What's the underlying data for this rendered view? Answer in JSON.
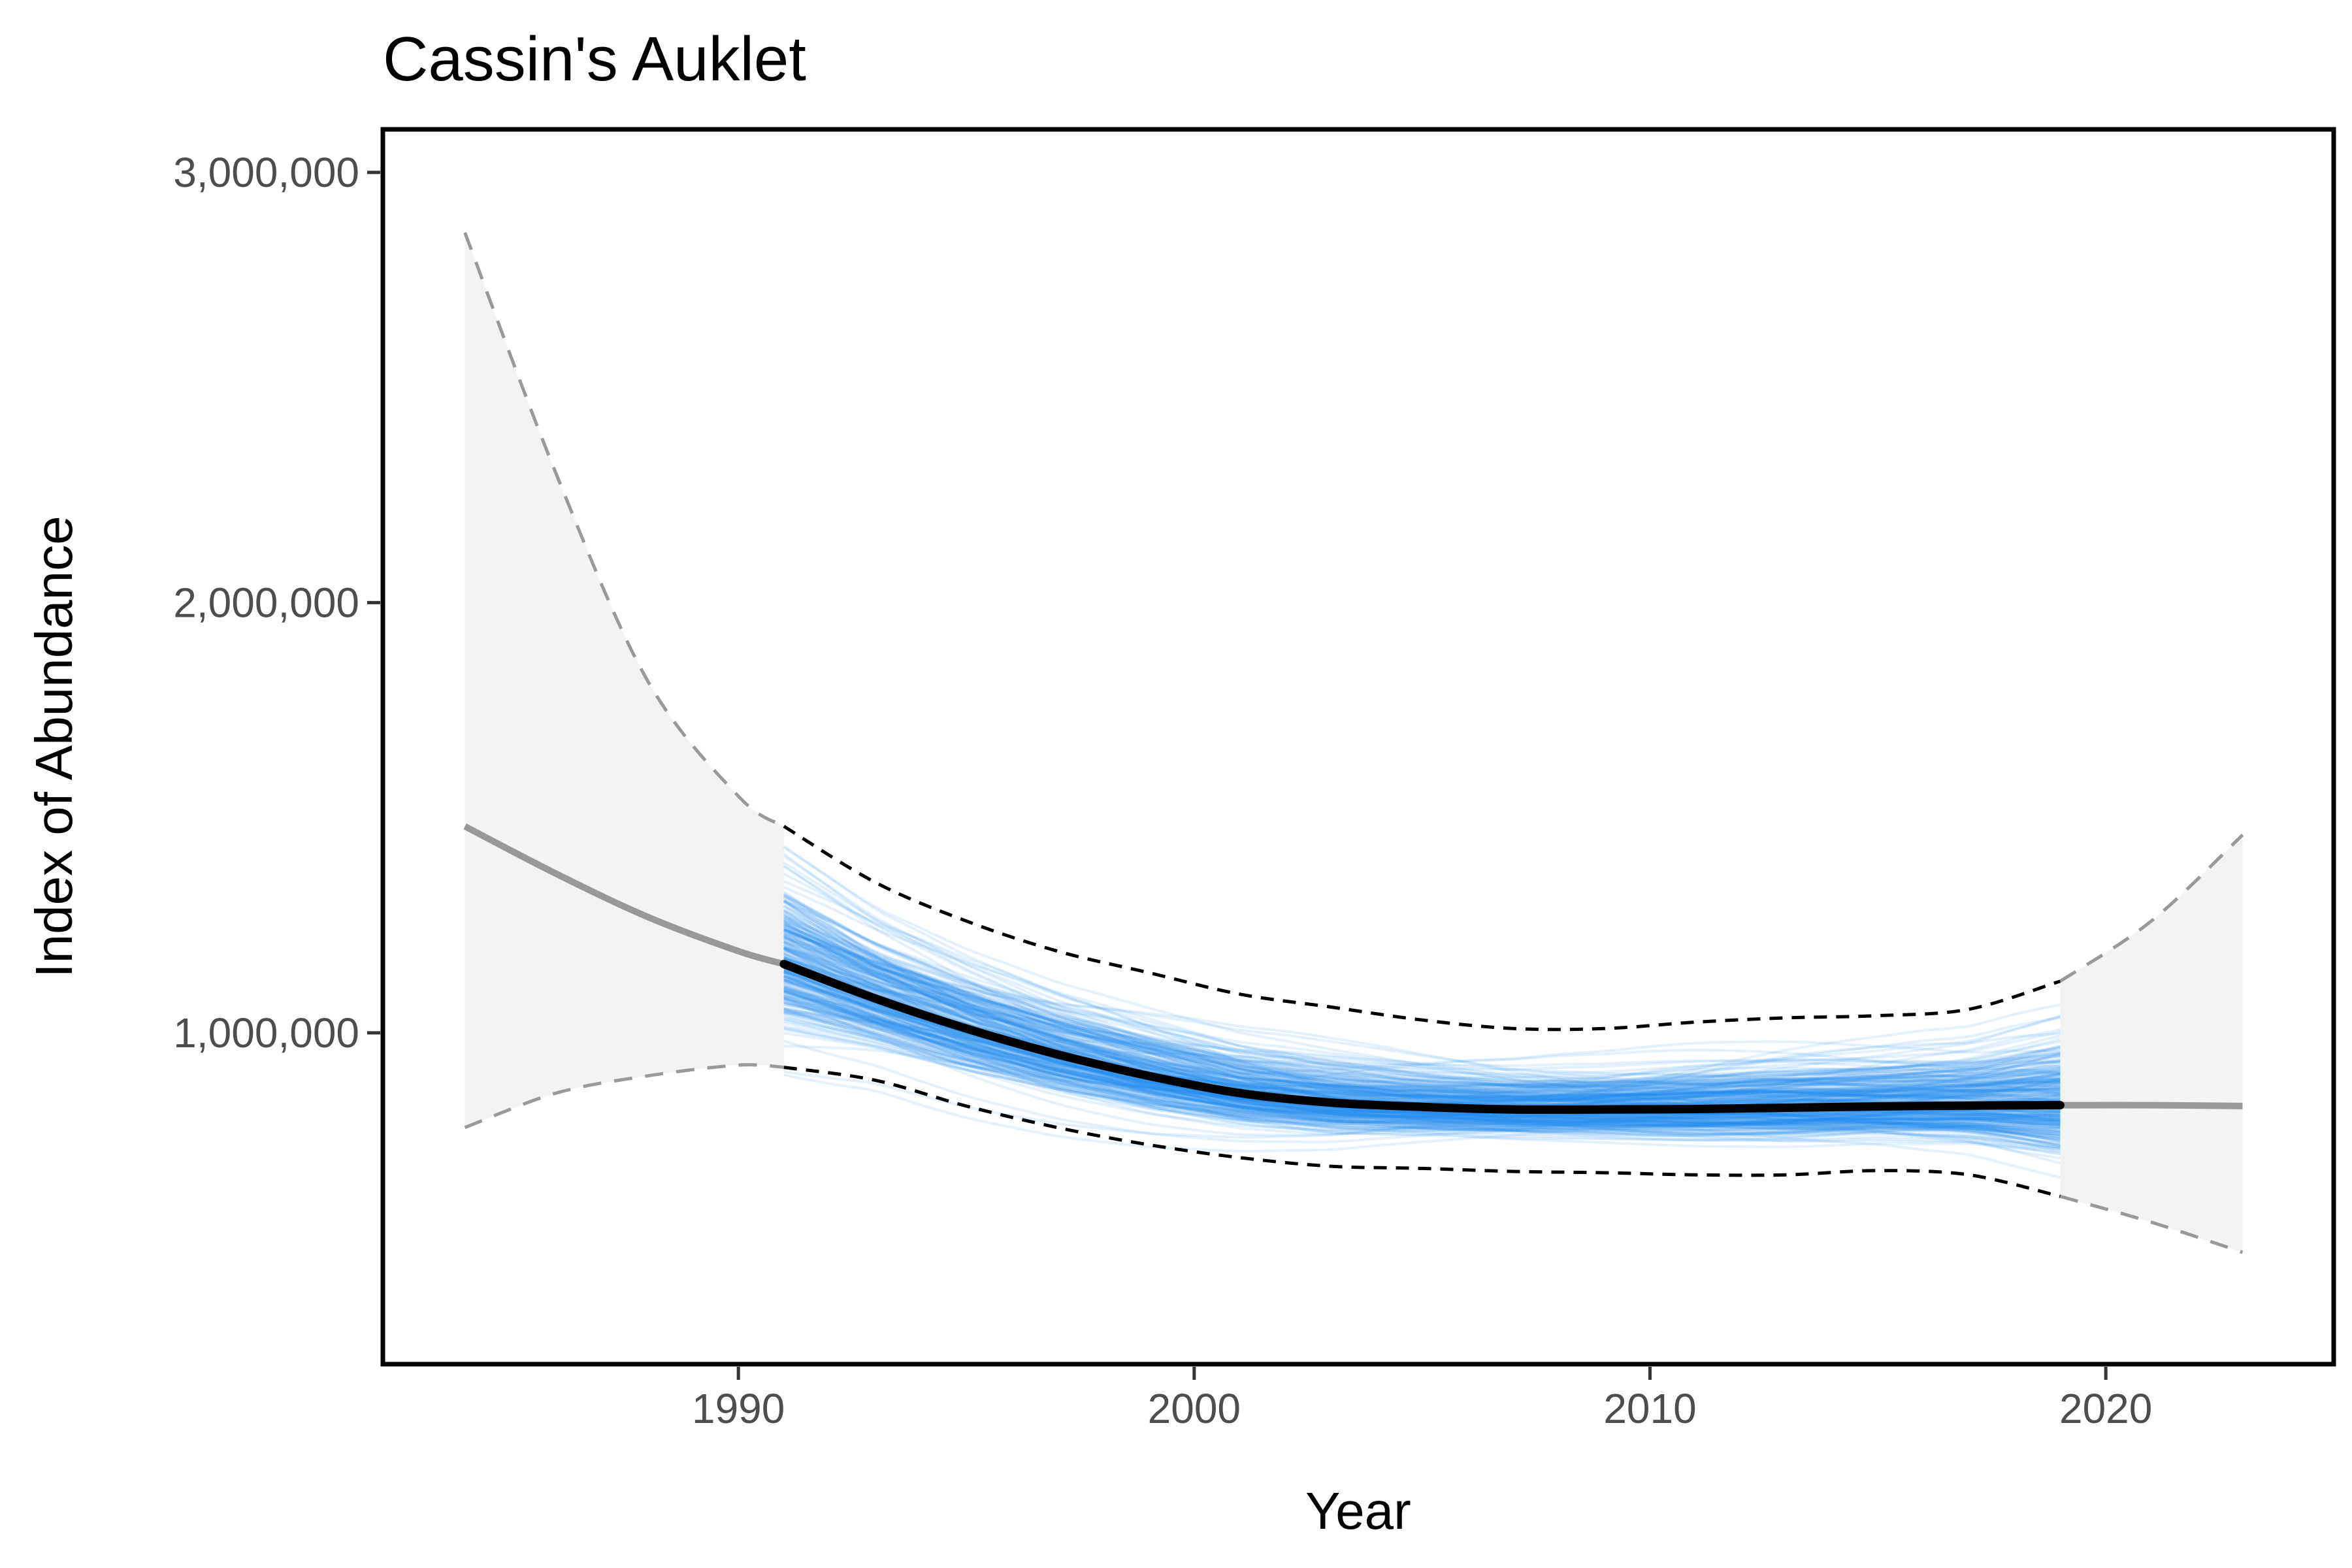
{
  "chart_data": {
    "type": "line",
    "title": "Cassin's Auklet",
    "xlabel": "Year",
    "ylabel": "Index of Abundance",
    "xlim": [
      1982.2,
      2025
    ],
    "ylim": [
      230000,
      3100000
    ],
    "x_ticks": [
      1990,
      2000,
      2010,
      2020
    ],
    "x_tick_labels": [
      "1990",
      "2000",
      "2010",
      "2020"
    ],
    "y_ticks": [
      1000000,
      2000000,
      3000000
    ],
    "y_tick_labels": [
      "1,000,000",
      "2,000,000",
      "3,000,000"
    ],
    "grid": false,
    "legend": "none",
    "colors": {
      "trajectories": "#1e88f0",
      "fitted": "#000000",
      "projection": "#999999",
      "projection_band": "#f3f3f3",
      "band_outline": "#999999"
    },
    "series": [
      {
        "role": "projection-band",
        "x": [
          1984,
          1986,
          1988,
          1990,
          1991
        ],
        "upper": [
          2860000,
          2300000,
          1820000,
          1550000,
          1480000
        ],
        "lower": [
          780000,
          860000,
          900000,
          925000,
          920000
        ]
      },
      {
        "role": "projection-mean",
        "x": [
          1984,
          1986,
          1988,
          1990,
          1991
        ],
        "values": [
          1480000,
          1370000,
          1270000,
          1190000,
          1160000
        ]
      },
      {
        "role": "fitted-mean",
        "x": [
          1991,
          1993,
          1995,
          1997,
          1999,
          2001,
          2003,
          2005,
          2007,
          2009,
          2011,
          2013,
          2015,
          2017,
          2019
        ],
        "values": [
          1160000,
          1080000,
          1010000,
          950000,
          900000,
          860000,
          838000,
          828000,
          822000,
          822000,
          823000,
          826000,
          829000,
          831000,
          832000
        ]
      },
      {
        "role": "fitted-upper",
        "x": [
          1991,
          1993,
          1995,
          1997,
          1999,
          2001,
          2003,
          2005,
          2007,
          2009,
          2011,
          2013,
          2015,
          2017,
          2019
        ],
        "values": [
          1480000,
          1350000,
          1260000,
          1190000,
          1140000,
          1090000,
          1060000,
          1030000,
          1010000,
          1010000,
          1025000,
          1035000,
          1040000,
          1055000,
          1120000
        ]
      },
      {
        "role": "fitted-lower",
        "x": [
          1991,
          1993,
          1995,
          1997,
          1999,
          2001,
          2003,
          2005,
          2007,
          2009,
          2011,
          2013,
          2015,
          2017,
          2019
        ],
        "values": [
          920000,
          890000,
          830000,
          780000,
          740000,
          710000,
          690000,
          685000,
          678000,
          675000,
          670000,
          670000,
          680000,
          670000,
          620000
        ]
      },
      {
        "role": "forecast-band",
        "x": [
          2019,
          2021,
          2023
        ],
        "upper": [
          1120000,
          1260000,
          1460000
        ],
        "lower": [
          620000,
          560000,
          490000
        ]
      },
      {
        "role": "forecast-mean",
        "x": [
          2019,
          2021,
          2023
        ],
        "values": [
          832000,
          832000,
          830000
        ]
      }
    ]
  }
}
